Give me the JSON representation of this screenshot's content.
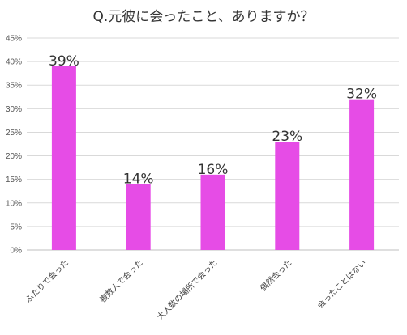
{
  "chart_data": {
    "type": "bar",
    "title": "Q.元彼に会ったこと、ありますか？",
    "categories": [
      "ふたりで会った",
      "複数人で会った",
      "大人数の場所で会った",
      "偶然会った",
      "会ったことはない"
    ],
    "values": [
      39,
      14,
      16,
      23,
      32
    ],
    "data_labels": [
      "39%",
      "14%",
      "16%",
      "23%",
      "32%"
    ],
    "ylim": [
      0,
      45
    ],
    "yticks": [
      0,
      5,
      10,
      15,
      20,
      25,
      30,
      35,
      40,
      45
    ],
    "ytick_labels": [
      "0%",
      "5%",
      "10%",
      "15%",
      "20%",
      "25%",
      "30%",
      "35%",
      "40%",
      "45%"
    ],
    "xlabel": "",
    "ylabel": "",
    "grid": true,
    "bar_color": "#e64ce6"
  }
}
